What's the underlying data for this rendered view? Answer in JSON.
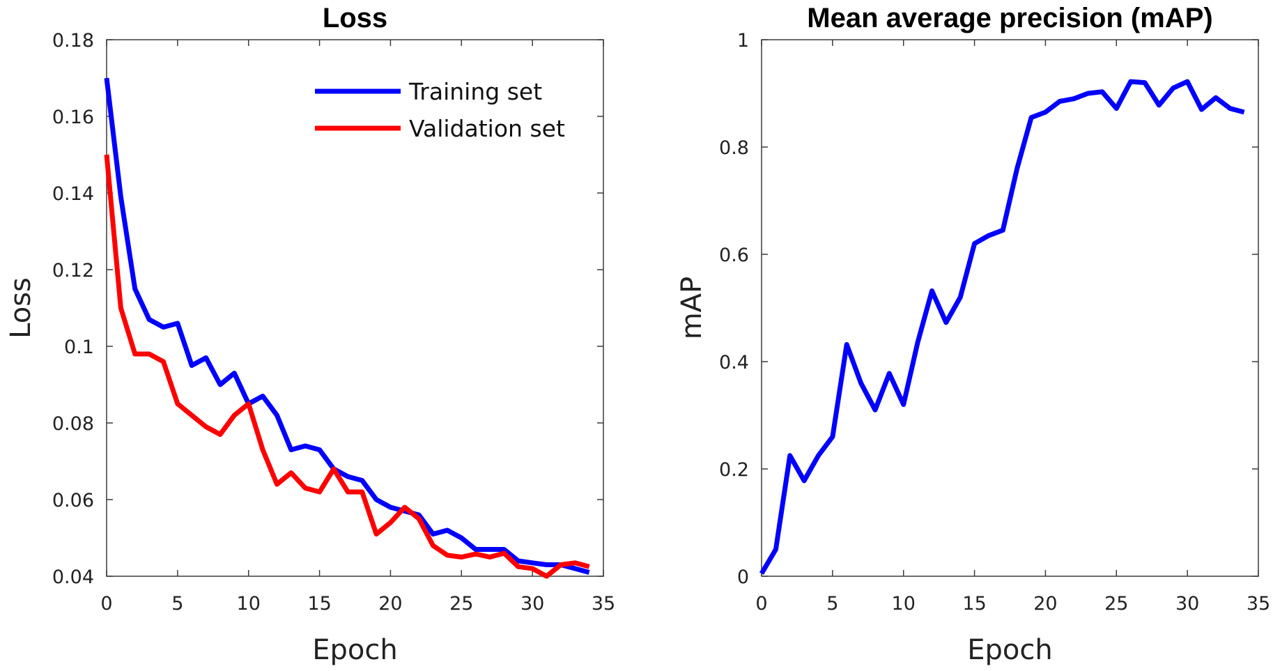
{
  "chart_data": [
    {
      "type": "line",
      "title": "Loss",
      "xlabel": "Epoch",
      "ylabel": "Loss",
      "xlim": [
        0,
        35
      ],
      "ylim": [
        0.04,
        0.18
      ],
      "xticks": [
        0,
        5,
        10,
        15,
        20,
        25,
        30,
        35
      ],
      "xtick_labels": [
        "0",
        "5",
        "10",
        "15",
        "20",
        "25",
        "30",
        "35"
      ],
      "yticks": [
        0.04,
        0.06,
        0.08,
        0.1,
        0.12,
        0.14,
        0.16,
        0.18
      ],
      "ytick_labels": [
        "0.04",
        "0.06",
        "0.08",
        "0.1",
        "0.12",
        "0.14",
        "0.16",
        "0.18"
      ],
      "grid": false,
      "legend_position": "top-right",
      "series": [
        {
          "name": "Training set",
          "color": "#0000ff",
          "x": [
            0,
            1,
            2,
            3,
            4,
            5,
            6,
            7,
            8,
            9,
            10,
            11,
            12,
            13,
            14,
            15,
            16,
            17,
            18,
            19,
            20,
            21,
            22,
            23,
            24,
            25,
            26,
            27,
            28,
            29,
            30,
            31,
            32,
            33,
            34
          ],
          "values": [
            0.17,
            0.139,
            0.115,
            0.107,
            0.105,
            0.106,
            0.095,
            0.097,
            0.09,
            0.093,
            0.085,
            0.087,
            0.082,
            0.073,
            0.074,
            0.073,
            0.068,
            0.066,
            0.065,
            0.06,
            0.058,
            0.057,
            0.056,
            0.051,
            0.052,
            0.05,
            0.047,
            0.047,
            0.047,
            0.044,
            0.0435,
            0.043,
            0.043,
            0.042,
            0.041
          ]
        },
        {
          "name": "Validation set",
          "color": "#ff0000",
          "x": [
            0,
            1,
            2,
            3,
            4,
            5,
            6,
            7,
            8,
            9,
            10,
            11,
            12,
            13,
            14,
            15,
            16,
            17,
            18,
            19,
            20,
            21,
            22,
            23,
            24,
            25,
            26,
            27,
            28,
            29,
            30,
            31,
            32,
            33,
            34
          ],
          "values": [
            0.15,
            0.11,
            0.098,
            0.098,
            0.096,
            0.085,
            0.082,
            0.079,
            0.077,
            0.082,
            0.085,
            0.073,
            0.064,
            0.067,
            0.063,
            0.062,
            0.068,
            0.062,
            0.062,
            0.051,
            0.054,
            0.058,
            0.055,
            0.048,
            0.0455,
            0.045,
            0.0458,
            0.045,
            0.046,
            0.0425,
            0.042,
            0.04,
            0.043,
            0.0435,
            0.0425
          ]
        }
      ]
    },
    {
      "type": "line",
      "title": "Mean average precision (mAP)",
      "xlabel": "Epoch",
      "ylabel": "mAP",
      "xlim": [
        0,
        35
      ],
      "ylim": [
        0,
        1
      ],
      "xticks": [
        0,
        5,
        10,
        15,
        20,
        25,
        30,
        35
      ],
      "xtick_labels": [
        "0",
        "5",
        "10",
        "15",
        "20",
        "25",
        "30",
        "35"
      ],
      "yticks": [
        0,
        0.2,
        0.4,
        0.6,
        0.8,
        1
      ],
      "ytick_labels": [
        "0",
        "0.2",
        "0.4",
        "0.6",
        "0.8",
        "1"
      ],
      "grid": false,
      "legend_position": "none",
      "series": [
        {
          "name": "mAP",
          "color": "#0000ff",
          "x": [
            0,
            1,
            2,
            3,
            4,
            5,
            6,
            7,
            8,
            9,
            10,
            11,
            12,
            13,
            14,
            15,
            16,
            17,
            18,
            19,
            20,
            21,
            22,
            23,
            24,
            25,
            26,
            27,
            28,
            29,
            30,
            31,
            32,
            33,
            34
          ],
          "values": [
            0.005,
            0.05,
            0.225,
            0.178,
            0.225,
            0.26,
            0.432,
            0.36,
            0.31,
            0.378,
            0.32,
            0.436,
            0.532,
            0.473,
            0.52,
            0.62,
            0.635,
            0.645,
            0.76,
            0.855,
            0.865,
            0.885,
            0.89,
            0.9,
            0.903,
            0.872,
            0.922,
            0.92,
            0.878,
            0.91,
            0.922,
            0.87,
            0.892,
            0.872,
            0.865
          ]
        }
      ]
    }
  ]
}
